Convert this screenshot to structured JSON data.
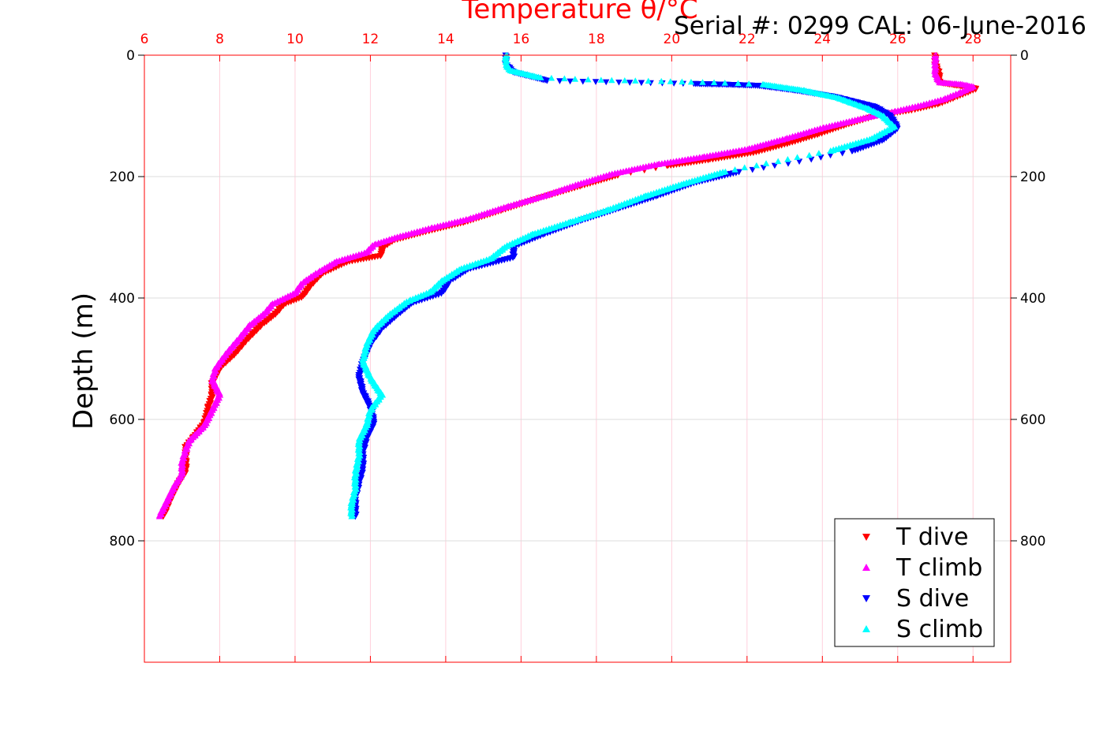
{
  "chart_data": {
    "type": "scatter",
    "title": "Serial #: 0299 CAL: 06-June-2016",
    "xlabel_top": "Temperature θ/°C",
    "ylabel": "Depth (m)",
    "xlim": [
      6,
      29
    ],
    "ylim": [
      0,
      1000
    ],
    "y_inverted": true,
    "x_ticks": [
      6,
      8,
      10,
      12,
      14,
      16,
      18,
      20,
      22,
      24,
      26,
      28
    ],
    "y_ticks": [
      0,
      200,
      400,
      600,
      800
    ],
    "grid": true,
    "legend_position": "bottom-right",
    "colors": {
      "top_axis": "#ff0000",
      "t_dive": "#ff0000",
      "t_climb": "#ff00ff",
      "s_dive": "#0000ff",
      "s_climb": "#00ffff"
    },
    "series": [
      {
        "name": "T dive",
        "marker": "triangle-down",
        "color": "#ff0000",
        "points": [
          [
            27.0,
            0
          ],
          [
            27.0,
            15
          ],
          [
            27.1,
            30
          ],
          [
            27.1,
            45
          ],
          [
            27.6,
            50
          ],
          [
            28.1,
            55
          ],
          [
            27.9,
            60
          ],
          [
            27.5,
            70
          ],
          [
            27.1,
            80
          ],
          [
            26.4,
            90
          ],
          [
            25.4,
            100
          ],
          [
            24.6,
            115
          ],
          [
            23.9,
            130
          ],
          [
            23.1,
            145
          ],
          [
            22.2,
            160
          ],
          [
            21.0,
            172
          ],
          [
            19.9,
            182
          ],
          [
            18.6,
            197
          ],
          [
            17.6,
            215
          ],
          [
            16.5,
            235
          ],
          [
            15.5,
            255
          ],
          [
            14.5,
            275
          ],
          [
            13.5,
            290
          ],
          [
            12.6,
            305
          ],
          [
            12.3,
            318
          ],
          [
            12.3,
            330
          ],
          [
            11.4,
            340
          ],
          [
            10.7,
            360
          ],
          [
            10.4,
            380
          ],
          [
            10.2,
            398
          ],
          [
            9.7,
            410
          ],
          [
            9.5,
            425
          ],
          [
            9.1,
            445
          ],
          [
            8.7,
            470
          ],
          [
            8.4,
            492
          ],
          [
            8.0,
            515
          ],
          [
            7.8,
            540
          ],
          [
            7.8,
            560
          ],
          [
            7.7,
            580
          ],
          [
            7.6,
            605
          ],
          [
            7.3,
            630
          ],
          [
            7.1,
            645
          ],
          [
            7.1,
            665
          ],
          [
            7.1,
            685
          ],
          [
            6.9,
            705
          ],
          [
            6.7,
            730
          ],
          [
            6.5,
            760
          ]
        ]
      },
      {
        "name": "T climb",
        "marker": "triangle-up",
        "color": "#ff00ff",
        "points": [
          [
            27.0,
            0
          ],
          [
            27.0,
            15
          ],
          [
            27.0,
            30
          ],
          [
            27.1,
            45
          ],
          [
            27.7,
            48
          ],
          [
            28.0,
            52
          ],
          [
            27.6,
            63
          ],
          [
            27.2,
            73
          ],
          [
            26.6,
            83
          ],
          [
            25.9,
            93
          ],
          [
            25.0,
            105
          ],
          [
            24.0,
            120
          ],
          [
            23.0,
            138
          ],
          [
            22.0,
            155
          ],
          [
            20.8,
            168
          ],
          [
            19.6,
            180
          ],
          [
            18.4,
            196
          ],
          [
            17.5,
            213
          ],
          [
            16.6,
            232
          ],
          [
            15.6,
            250
          ],
          [
            14.6,
            270
          ],
          [
            13.6,
            285
          ],
          [
            12.7,
            300
          ],
          [
            12.1,
            312
          ],
          [
            11.9,
            325
          ],
          [
            11.1,
            340
          ],
          [
            10.6,
            358
          ],
          [
            10.2,
            375
          ],
          [
            10.0,
            392
          ],
          [
            9.4,
            410
          ],
          [
            9.2,
            425
          ],
          [
            8.8,
            445
          ],
          [
            8.5,
            468
          ],
          [
            8.2,
            490
          ],
          [
            7.9,
            515
          ],
          [
            7.8,
            535
          ],
          [
            8.0,
            560
          ],
          [
            7.8,
            585
          ],
          [
            7.6,
            610
          ],
          [
            7.2,
            635
          ],
          [
            7.1,
            650
          ],
          [
            7.0,
            670
          ],
          [
            7.0,
            690
          ],
          [
            6.8,
            710
          ],
          [
            6.6,
            735
          ],
          [
            6.4,
            760
          ]
        ]
      },
      {
        "name": "S dive",
        "marker": "triangle-down",
        "color": "#0000ff",
        "points": [
          [
            15.6,
            0
          ],
          [
            15.6,
            15
          ],
          [
            15.8,
            28
          ],
          [
            16.7,
            42
          ],
          [
            18.9,
            45
          ],
          [
            20.6,
            47
          ],
          [
            21.3,
            48
          ],
          [
            22.3,
            50
          ],
          [
            23.3,
            58
          ],
          [
            24.3,
            68
          ],
          [
            25.4,
            85
          ],
          [
            25.8,
            100
          ],
          [
            26.0,
            120
          ],
          [
            25.6,
            140
          ],
          [
            24.8,
            158
          ],
          [
            23.4,
            175
          ],
          [
            21.8,
            192
          ],
          [
            20.6,
            210
          ],
          [
            19.6,
            232
          ],
          [
            18.6,
            252
          ],
          [
            17.6,
            272
          ],
          [
            16.6,
            295
          ],
          [
            15.8,
            315
          ],
          [
            15.8,
            333
          ],
          [
            14.6,
            352
          ],
          [
            14.1,
            372
          ],
          [
            13.9,
            392
          ],
          [
            13.1,
            408
          ],
          [
            12.7,
            428
          ],
          [
            12.3,
            450
          ],
          [
            12.0,
            475
          ],
          [
            11.8,
            505
          ],
          [
            11.7,
            530
          ],
          [
            11.8,
            555
          ],
          [
            12.0,
            580
          ],
          [
            12.1,
            605
          ],
          [
            11.9,
            630
          ],
          [
            11.8,
            655
          ],
          [
            11.8,
            680
          ],
          [
            11.7,
            705
          ],
          [
            11.6,
            730
          ],
          [
            11.6,
            760
          ]
        ]
      },
      {
        "name": "S climb",
        "marker": "triangle-up",
        "color": "#00ffff",
        "points": [
          [
            15.6,
            0
          ],
          [
            15.6,
            15
          ],
          [
            15.7,
            25
          ],
          [
            16.5,
            37
          ],
          [
            18.1,
            41
          ],
          [
            19.7,
            43
          ],
          [
            21.1,
            45
          ],
          [
            22.4,
            48
          ],
          [
            23.5,
            58
          ],
          [
            24.4,
            70
          ],
          [
            25.2,
            88
          ],
          [
            25.6,
            100
          ],
          [
            25.9,
            118
          ],
          [
            25.3,
            138
          ],
          [
            24.2,
            158
          ],
          [
            22.8,
            175
          ],
          [
            21.4,
            192
          ],
          [
            20.3,
            212
          ],
          [
            19.3,
            232
          ],
          [
            18.3,
            255
          ],
          [
            17.3,
            275
          ],
          [
            16.3,
            295
          ],
          [
            15.6,
            315
          ],
          [
            15.2,
            335
          ],
          [
            14.4,
            352
          ],
          [
            13.9,
            372
          ],
          [
            13.6,
            390
          ],
          [
            13.0,
            405
          ],
          [
            12.5,
            428
          ],
          [
            12.1,
            452
          ],
          [
            11.9,
            478
          ],
          [
            11.8,
            505
          ],
          [
            12.0,
            532
          ],
          [
            12.3,
            560
          ],
          [
            12.0,
            585
          ],
          [
            11.9,
            610
          ],
          [
            11.7,
            635
          ],
          [
            11.7,
            660
          ],
          [
            11.6,
            690
          ],
          [
            11.6,
            715
          ],
          [
            11.5,
            740
          ],
          [
            11.5,
            760
          ]
        ]
      }
    ]
  }
}
